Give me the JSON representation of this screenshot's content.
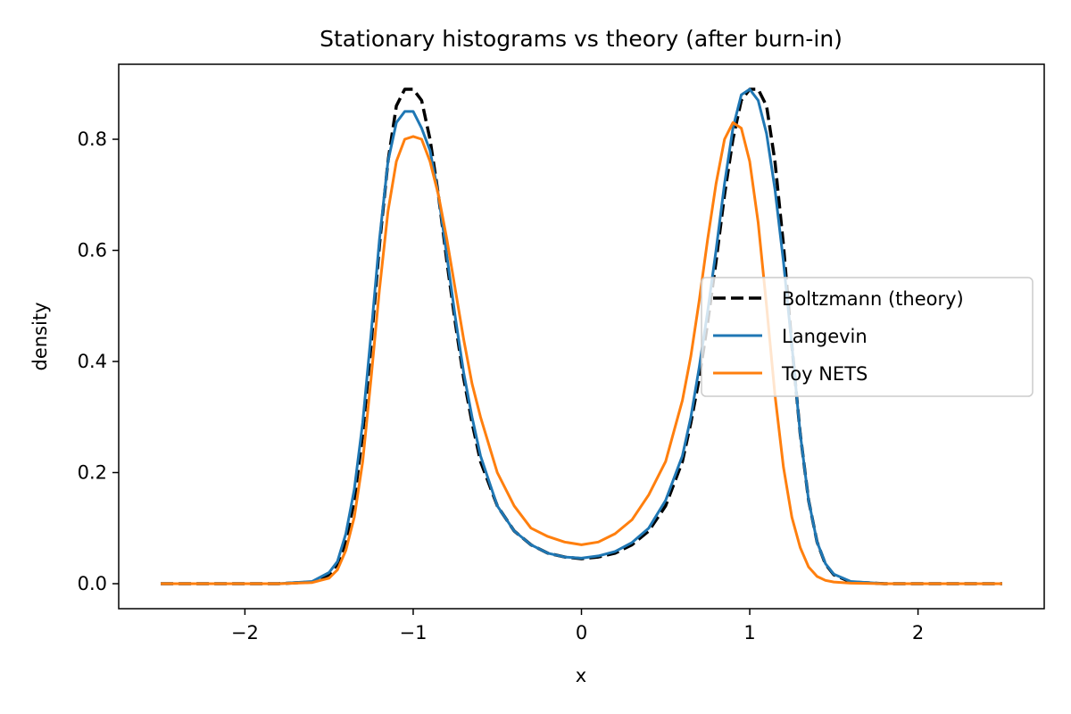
{
  "chart_data": {
    "type": "line",
    "title": "Stationary histograms vs theory (after burn-in)",
    "xlabel": "x",
    "ylabel": "density",
    "xlim": [
      -2.75,
      2.75
    ],
    "ylim": [
      -0.045,
      0.935
    ],
    "xticks": [
      -2,
      -1,
      0,
      1,
      2
    ],
    "xtick_labels": [
      "−2",
      "−1",
      "0",
      "1",
      "2"
    ],
    "yticks": [
      0.0,
      0.2,
      0.4,
      0.6,
      0.8
    ],
    "ytick_labels": [
      "0.0",
      "0.2",
      "0.4",
      "0.6",
      "0.8"
    ],
    "grid": false,
    "legend_position": "center-right",
    "series": [
      {
        "name": "Boltzmann (theory)",
        "color": "#000000",
        "style": "dashed",
        "x": [
          -2.5,
          -1.8,
          -1.6,
          -1.5,
          -1.45,
          -1.4,
          -1.35,
          -1.3,
          -1.25,
          -1.2,
          -1.15,
          -1.1,
          -1.05,
          -1.0,
          -0.95,
          -0.9,
          -0.85,
          -0.8,
          -0.75,
          -0.7,
          -0.65,
          -0.6,
          -0.5,
          -0.4,
          -0.3,
          -0.2,
          -0.1,
          0.0,
          0.1,
          0.2,
          0.3,
          0.4,
          0.5,
          0.6,
          0.65,
          0.7,
          0.75,
          0.8,
          0.85,
          0.9,
          0.95,
          1.0,
          1.05,
          1.1,
          1.15,
          1.2,
          1.25,
          1.3,
          1.35,
          1.4,
          1.45,
          1.5,
          1.6,
          1.8,
          2.5
        ],
        "y": [
          0.0,
          0.0,
          0.003,
          0.016,
          0.035,
          0.075,
          0.15,
          0.27,
          0.43,
          0.61,
          0.76,
          0.86,
          0.89,
          0.89,
          0.87,
          0.8,
          0.7,
          0.58,
          0.47,
          0.37,
          0.29,
          0.22,
          0.14,
          0.095,
          0.07,
          0.055,
          0.048,
          0.045,
          0.048,
          0.055,
          0.07,
          0.095,
          0.14,
          0.22,
          0.29,
          0.37,
          0.47,
          0.58,
          0.7,
          0.8,
          0.87,
          0.89,
          0.89,
          0.86,
          0.76,
          0.61,
          0.43,
          0.27,
          0.15,
          0.075,
          0.035,
          0.016,
          0.003,
          0.0,
          0.0
        ]
      },
      {
        "name": "Langevin",
        "color": "#1f77b4",
        "style": "solid",
        "x": [
          -2.5,
          -1.8,
          -1.6,
          -1.5,
          -1.45,
          -1.4,
          -1.35,
          -1.3,
          -1.25,
          -1.2,
          -1.15,
          -1.1,
          -1.05,
          -1.0,
          -0.95,
          -0.9,
          -0.85,
          -0.8,
          -0.75,
          -0.7,
          -0.65,
          -0.6,
          -0.5,
          -0.4,
          -0.3,
          -0.2,
          -0.1,
          0.0,
          0.1,
          0.2,
          0.3,
          0.4,
          0.5,
          0.6,
          0.65,
          0.7,
          0.75,
          0.8,
          0.85,
          0.9,
          0.95,
          1.0,
          1.05,
          1.1,
          1.15,
          1.2,
          1.25,
          1.3,
          1.35,
          1.4,
          1.45,
          1.5,
          1.6,
          1.8,
          2.5
        ],
        "y": [
          0.0,
          0.0,
          0.004,
          0.02,
          0.04,
          0.09,
          0.17,
          0.29,
          0.45,
          0.62,
          0.76,
          0.83,
          0.85,
          0.85,
          0.82,
          0.78,
          0.7,
          0.59,
          0.48,
          0.38,
          0.3,
          0.23,
          0.14,
          0.095,
          0.07,
          0.055,
          0.048,
          0.046,
          0.05,
          0.058,
          0.074,
          0.1,
          0.15,
          0.23,
          0.3,
          0.39,
          0.49,
          0.6,
          0.72,
          0.82,
          0.88,
          0.89,
          0.87,
          0.81,
          0.71,
          0.58,
          0.43,
          0.27,
          0.15,
          0.075,
          0.036,
          0.017,
          0.004,
          0.0,
          0.0
        ]
      },
      {
        "name": "Toy NETS",
        "color": "#ff7f0e",
        "style": "solid",
        "x": [
          -2.5,
          -1.8,
          -1.6,
          -1.5,
          -1.45,
          -1.4,
          -1.35,
          -1.3,
          -1.25,
          -1.2,
          -1.15,
          -1.1,
          -1.05,
          -1.0,
          -0.95,
          -0.9,
          -0.85,
          -0.8,
          -0.75,
          -0.7,
          -0.65,
          -0.6,
          -0.5,
          -0.4,
          -0.3,
          -0.2,
          -0.1,
          0.0,
          0.1,
          0.2,
          0.3,
          0.4,
          0.5,
          0.6,
          0.65,
          0.7,
          0.75,
          0.8,
          0.85,
          0.9,
          0.95,
          1.0,
          1.05,
          1.1,
          1.15,
          1.2,
          1.25,
          1.3,
          1.35,
          1.4,
          1.45,
          1.5,
          1.6,
          1.8,
          2.5
        ],
        "y": [
          0.0,
          0.0,
          0.002,
          0.01,
          0.025,
          0.06,
          0.12,
          0.22,
          0.37,
          0.53,
          0.67,
          0.76,
          0.8,
          0.805,
          0.8,
          0.76,
          0.7,
          0.62,
          0.53,
          0.44,
          0.36,
          0.3,
          0.2,
          0.14,
          0.1,
          0.085,
          0.075,
          0.07,
          0.075,
          0.09,
          0.115,
          0.16,
          0.22,
          0.33,
          0.41,
          0.51,
          0.62,
          0.72,
          0.8,
          0.83,
          0.82,
          0.76,
          0.65,
          0.5,
          0.34,
          0.21,
          0.12,
          0.065,
          0.03,
          0.013,
          0.006,
          0.003,
          0.001,
          0.0,
          0.0
        ]
      }
    ]
  }
}
